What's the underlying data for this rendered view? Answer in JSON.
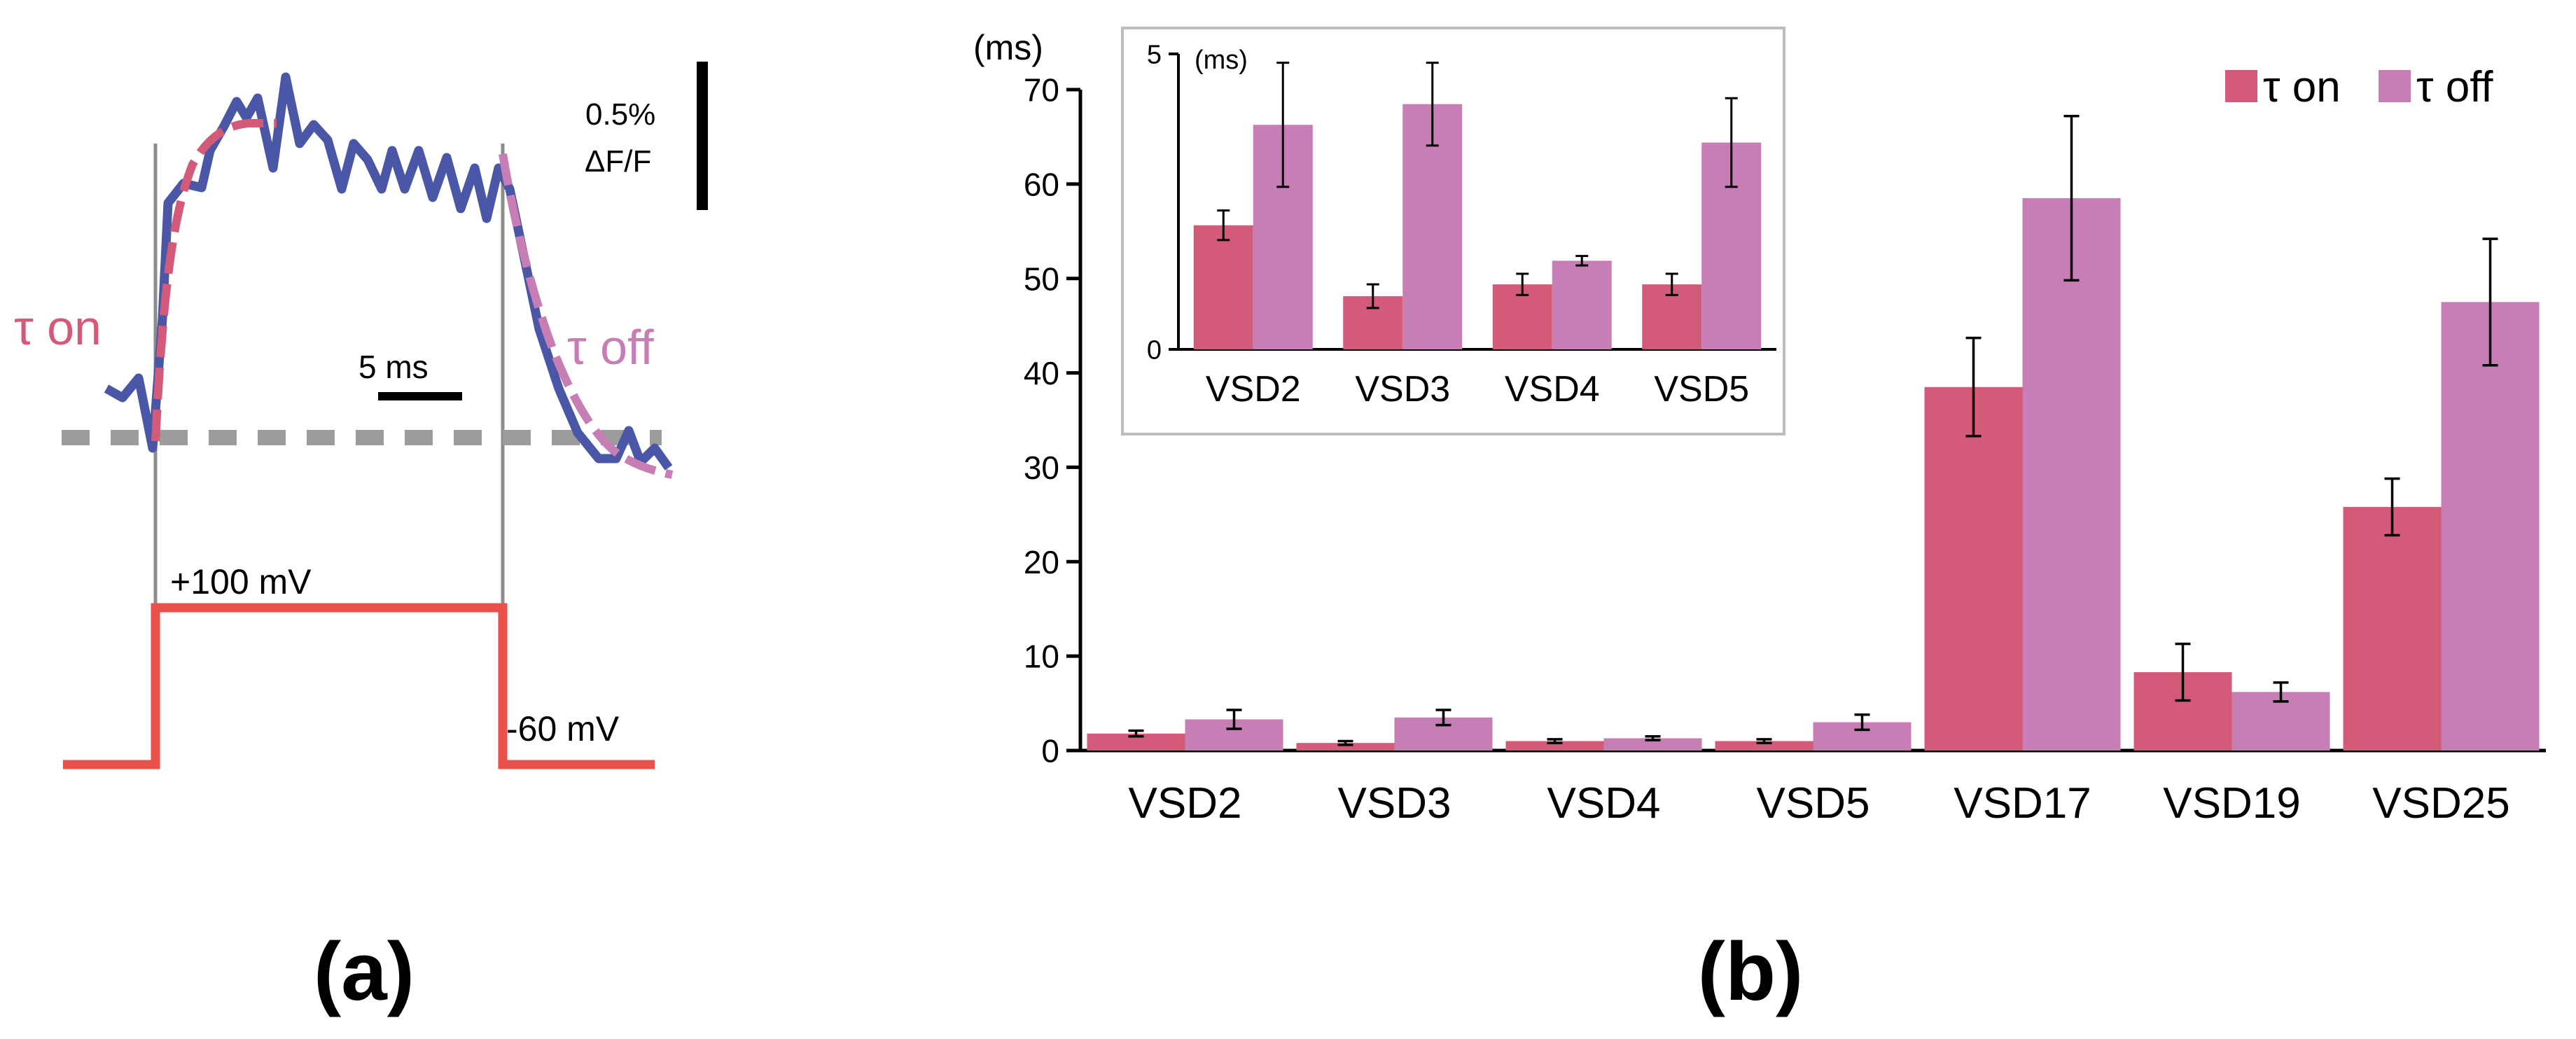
{
  "panel_a": {
    "panel_label": "(a)",
    "tau_on_label": "τ on",
    "tau_off_label": "τ off",
    "scale_time_label": "5 ms",
    "scale_amp_label": "0.5%",
    "scale_amp_unit": "ΔF/F",
    "voltage_high_label": "+100 mV",
    "voltage_low_label": "-60 mV",
    "colors": {
      "trace": "#4a56a6",
      "fit_on": "#d45a7a",
      "fit_off": "#c77eb5",
      "baseline": "#9c9c9c",
      "voltage_step": "#e8524a",
      "step_markers": "#8c8c8c"
    }
  },
  "panel_b": {
    "panel_label": "(b)"
  },
  "chart_data": [
    {
      "type": "bar",
      "title": "",
      "ylabel": "(ms)",
      "xlabel": "",
      "ylim": [
        0,
        70
      ],
      "yticks": [
        0,
        10,
        20,
        30,
        40,
        50,
        60,
        70
      ],
      "categories": [
        "VSD2",
        "VSD3",
        "VSD4",
        "VSD5",
        "VSD17",
        "VSD19",
        "VSD25"
      ],
      "legend_position": "top-right",
      "series": [
        {
          "name": "τ on",
          "color": "#d45a7a",
          "values": [
            1.8,
            0.8,
            1.0,
            1.0,
            38.5,
            8.3,
            25.8
          ],
          "errors": [
            0.3,
            0.2,
            0.2,
            0.2,
            5.2,
            3.0,
            3.0
          ]
        },
        {
          "name": "τ off",
          "color": "#c77eb5",
          "values": [
            3.3,
            3.5,
            1.3,
            3.0,
            58.5,
            6.2,
            47.5
          ],
          "errors": [
            1.0,
            0.8,
            0.2,
            0.8,
            8.7,
            1.0,
            6.7
          ]
        }
      ]
    },
    {
      "type": "bar",
      "title": "inset",
      "ylabel": "(ms)",
      "xlabel": "",
      "ylim": [
        0,
        5
      ],
      "yticks": [
        0,
        5
      ],
      "categories": [
        "VSD2",
        "VSD3",
        "VSD4",
        "VSD5"
      ],
      "series": [
        {
          "name": "τ on",
          "color": "#d45a7a",
          "values": [
            2.1,
            0.9,
            1.1,
            1.1
          ],
          "errors": [
            0.25,
            0.2,
            0.18,
            0.18
          ]
        },
        {
          "name": "τ off",
          "color": "#c77eb5",
          "values": [
            3.8,
            4.15,
            1.5,
            3.5
          ],
          "errors": [
            1.05,
            0.7,
            0.08,
            0.75
          ]
        }
      ]
    }
  ]
}
